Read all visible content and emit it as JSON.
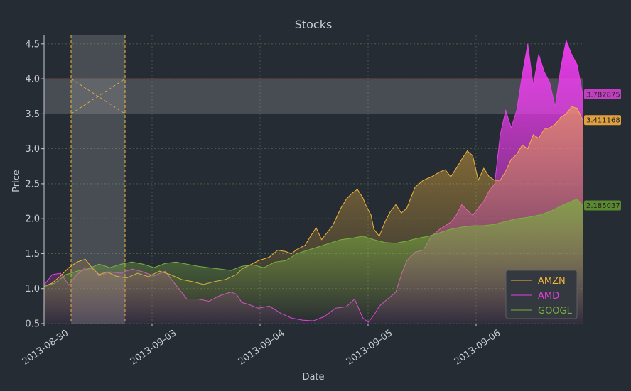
{
  "chart_data": {
    "type": "area",
    "title": "Stocks",
    "xlabel": "Date",
    "ylabel": "Price",
    "ylim": [
      0.5,
      4.62
    ],
    "yticks": [
      0.5,
      1.0,
      1.5,
      2.0,
      2.5,
      3.0,
      3.5,
      4.0,
      4.5
    ],
    "ytick_labels": [
      "0.5",
      "1.0",
      "1.5",
      "2.0",
      "2.5",
      "3.0",
      "3.5",
      "4.0",
      "4.5"
    ],
    "xticks": [
      "2013-08-30",
      "2013-09-03",
      "2013-09-04",
      "2013-09-05",
      "2013-09-06"
    ],
    "grid": true,
    "legend_position": "lower-right",
    "highlight": {
      "y_band": [
        3.5,
        4.0
      ],
      "x_band_approx": [
        "2013-08-30 (≈25%)",
        "2013-08-30 (≈75%)"
      ]
    },
    "series": [
      {
        "name": "AMZN",
        "color": "#f0b43c",
        "last_value": "3.411168",
        "points": [
          [
            0,
            1.03
          ],
          [
            3,
            1.08
          ],
          [
            6,
            1.18
          ],
          [
            9,
            1.3
          ],
          [
            12,
            1.38
          ],
          [
            15,
            1.42
          ],
          [
            17,
            1.32
          ],
          [
            20,
            1.2
          ],
          [
            23,
            1.24
          ],
          [
            26,
            1.18
          ],
          [
            30,
            1.15
          ],
          [
            34,
            1.22
          ],
          [
            38,
            1.17
          ],
          [
            42,
            1.25
          ],
          [
            46,
            1.2
          ],
          [
            50,
            1.13
          ],
          [
            54,
            1.1
          ],
          [
            58,
            1.06
          ],
          [
            62,
            1.1
          ],
          [
            66,
            1.13
          ],
          [
            70,
            1.2
          ],
          [
            72,
            1.28
          ],
          [
            75,
            1.34
          ],
          [
            78,
            1.4
          ],
          [
            82,
            1.45
          ],
          [
            85,
            1.55
          ],
          [
            88,
            1.53
          ],
          [
            90,
            1.5
          ],
          [
            92,
            1.56
          ],
          [
            95,
            1.62
          ],
          [
            97,
            1.75
          ],
          [
            99,
            1.87
          ],
          [
            101,
            1.7
          ],
          [
            103,
            1.8
          ],
          [
            105,
            1.9
          ],
          [
            108,
            2.15
          ],
          [
            110,
            2.28
          ],
          [
            112,
            2.36
          ],
          [
            114,
            2.42
          ],
          [
            116,
            2.3
          ],
          [
            117,
            2.2
          ],
          [
            119,
            2.05
          ],
          [
            120,
            1.85
          ],
          [
            122,
            1.75
          ],
          [
            124,
            1.95
          ],
          [
            126,
            2.1
          ],
          [
            128,
            2.2
          ],
          [
            130,
            2.08
          ],
          [
            132,
            2.15
          ],
          [
            135,
            2.45
          ],
          [
            138,
            2.55
          ],
          [
            141,
            2.6
          ],
          [
            144,
            2.67
          ],
          [
            146,
            2.7
          ],
          [
            148,
            2.6
          ],
          [
            150,
            2.72
          ],
          [
            152,
            2.85
          ],
          [
            154,
            2.97
          ],
          [
            156,
            2.9
          ],
          [
            158,
            2.55
          ],
          [
            160,
            2.72
          ],
          [
            162,
            2.6
          ],
          [
            164,
            2.55
          ],
          [
            166,
            2.55
          ],
          [
            168,
            2.68
          ],
          [
            170,
            2.85
          ],
          [
            172,
            2.92
          ],
          [
            174,
            3.05
          ],
          [
            176,
            3.0
          ],
          [
            178,
            3.2
          ],
          [
            180,
            3.15
          ],
          [
            182,
            3.28
          ],
          [
            184,
            3.3
          ],
          [
            186,
            3.35
          ],
          [
            188,
            3.45
          ],
          [
            190,
            3.5
          ],
          [
            192,
            3.6
          ],
          [
            194,
            3.58
          ],
          [
            196,
            3.41
          ]
        ]
      },
      {
        "name": "AMD",
        "color": "#e040e0",
        "last_value": "3.782875",
        "points": [
          [
            0,
            1.05
          ],
          [
            3,
            1.2
          ],
          [
            6,
            1.22
          ],
          [
            9,
            1.05
          ],
          [
            12,
            1.2
          ],
          [
            15,
            1.3
          ],
          [
            18,
            1.28
          ],
          [
            20,
            1.18
          ],
          [
            24,
            1.24
          ],
          [
            28,
            1.22
          ],
          [
            32,
            1.28
          ],
          [
            36,
            1.24
          ],
          [
            40,
            1.18
          ],
          [
            44,
            1.25
          ],
          [
            48,
            1.05
          ],
          [
            52,
            0.85
          ],
          [
            56,
            0.85
          ],
          [
            60,
            0.82
          ],
          [
            64,
            0.9
          ],
          [
            68,
            0.95
          ],
          [
            70,
            0.92
          ],
          [
            72,
            0.8
          ],
          [
            74,
            0.78
          ],
          [
            78,
            0.72
          ],
          [
            82,
            0.75
          ],
          [
            86,
            0.65
          ],
          [
            90,
            0.58
          ],
          [
            94,
            0.55
          ],
          [
            98,
            0.54
          ],
          [
            102,
            0.6
          ],
          [
            106,
            0.72
          ],
          [
            110,
            0.74
          ],
          [
            113,
            0.85
          ],
          [
            116,
            0.58
          ],
          [
            118,
            0.52
          ],
          [
            120,
            0.62
          ],
          [
            122,
            0.75
          ],
          [
            125,
            0.85
          ],
          [
            128,
            0.95
          ],
          [
            130,
            1.2
          ],
          [
            132,
            1.4
          ],
          [
            135,
            1.52
          ],
          [
            138,
            1.55
          ],
          [
            141,
            1.75
          ],
          [
            144,
            1.85
          ],
          [
            148,
            1.95
          ],
          [
            150,
            2.05
          ],
          [
            152,
            2.2
          ],
          [
            154,
            2.12
          ],
          [
            156,
            2.05
          ],
          [
            158,
            2.15
          ],
          [
            160,
            2.25
          ],
          [
            162,
            2.4
          ],
          [
            164,
            2.5
          ],
          [
            166,
            3.2
          ],
          [
            168,
            3.55
          ],
          [
            170,
            3.3
          ],
          [
            172,
            3.55
          ],
          [
            174,
            4.05
          ],
          [
            176,
            4.5
          ],
          [
            178,
            3.9
          ],
          [
            180,
            4.35
          ],
          [
            182,
            4.1
          ],
          [
            184,
            3.95
          ],
          [
            186,
            3.6
          ],
          [
            188,
            4.15
          ],
          [
            190,
            4.55
          ],
          [
            192,
            4.35
          ],
          [
            194,
            4.2
          ],
          [
            196,
            3.78
          ]
        ]
      },
      {
        "name": "GOOGL",
        "color": "#7ab040",
        "last_value": "2.185037",
        "points": [
          [
            0,
            1.03
          ],
          [
            4,
            1.08
          ],
          [
            8,
            1.2
          ],
          [
            12,
            1.25
          ],
          [
            16,
            1.28
          ],
          [
            20,
            1.35
          ],
          [
            24,
            1.3
          ],
          [
            28,
            1.35
          ],
          [
            32,
            1.38
          ],
          [
            36,
            1.35
          ],
          [
            40,
            1.3
          ],
          [
            44,
            1.36
          ],
          [
            48,
            1.38
          ],
          [
            52,
            1.35
          ],
          [
            56,
            1.32
          ],
          [
            60,
            1.3
          ],
          [
            64,
            1.28
          ],
          [
            68,
            1.26
          ],
          [
            72,
            1.32
          ],
          [
            76,
            1.34
          ],
          [
            80,
            1.3
          ],
          [
            84,
            1.38
          ],
          [
            88,
            1.4
          ],
          [
            92,
            1.5
          ],
          [
            96,
            1.55
          ],
          [
            100,
            1.6
          ],
          [
            104,
            1.65
          ],
          [
            108,
            1.7
          ],
          [
            112,
            1.72
          ],
          [
            116,
            1.75
          ],
          [
            120,
            1.7
          ],
          [
            124,
            1.66
          ],
          [
            128,
            1.65
          ],
          [
            132,
            1.68
          ],
          [
            136,
            1.72
          ],
          [
            140,
            1.75
          ],
          [
            144,
            1.8
          ],
          [
            148,
            1.85
          ],
          [
            152,
            1.88
          ],
          [
            156,
            1.9
          ],
          [
            160,
            1.9
          ],
          [
            164,
            1.92
          ],
          [
            168,
            1.96
          ],
          [
            172,
            2.0
          ],
          [
            176,
            2.02
          ],
          [
            180,
            2.05
          ],
          [
            184,
            2.1
          ],
          [
            188,
            2.18
          ],
          [
            192,
            2.25
          ],
          [
            194,
            2.28
          ],
          [
            196,
            2.19
          ]
        ]
      }
    ]
  }
}
